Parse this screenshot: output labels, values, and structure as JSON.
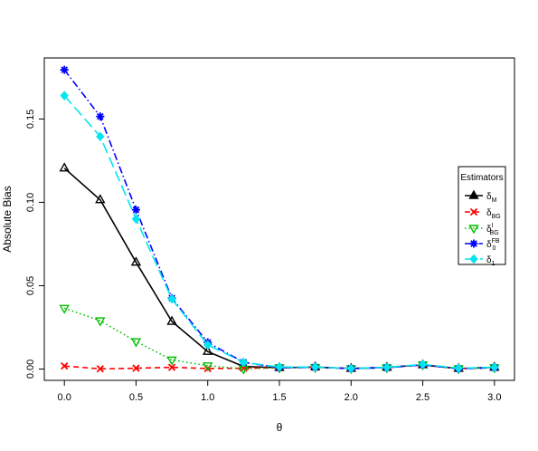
{
  "chart_data": {
    "type": "line",
    "xlabel": "θ",
    "ylabel": "Absolute Bias",
    "xlim": [
      -0.14,
      3.14
    ],
    "ylim": [
      -0.0068,
      0.1866
    ],
    "xticks": [
      "0.0",
      "0.5",
      "1.0",
      "1.5",
      "2.0",
      "2.5",
      "3.0"
    ],
    "xtick_values": [
      0,
      0.5,
      1.0,
      1.5,
      2.0,
      2.5,
      3.0
    ],
    "yticks": [
      "0.00",
      "0.05",
      "0.10",
      "0.15"
    ],
    "ytick_values": [
      0,
      0.05,
      0.1,
      0.15
    ],
    "grid": false,
    "legend": {
      "title": "Estimators",
      "placement": "right"
    },
    "x": [
      0,
      0.25,
      0.5,
      0.75,
      1.0,
      1.25,
      1.5,
      1.75,
      2.0,
      2.25,
      2.5,
      2.75,
      3.0
    ],
    "series": [
      {
        "name": "δ_M",
        "label_main": "δ",
        "label_sub": "M",
        "label_sup": "",
        "color": "#000000",
        "dash": "",
        "marker": "triangle-up-open",
        "line_marker": "triangle-up-filled",
        "values": [
          0.1205,
          0.1015,
          0.064,
          0.0285,
          0.0105,
          0.0015,
          0.0008,
          0.0012,
          0.0003,
          0.001,
          0.0025,
          0.0003,
          0.001
        ]
      },
      {
        "name": "δ_BG",
        "label_main": "δ",
        "label_sub": "BG",
        "label_sup": "",
        "color": "#ff0000",
        "dash": "6,4",
        "marker": "x",
        "line_marker": "x",
        "values": [
          0.0018,
          0.0001,
          0.0005,
          0.001,
          0.0003,
          0.0005,
          0.0008,
          0.001,
          0.0003,
          0.0008,
          0.0025,
          0.0002,
          0.0008
        ]
      },
      {
        "name": "δ_BG^I",
        "label_main": "δ",
        "label_sub": "BG",
        "label_sup": "I",
        "color": "#00c000",
        "dash": "1.5,3",
        "marker": "triangle-down-open",
        "line_marker": "triangle-down-open",
        "values": [
          0.0365,
          0.029,
          0.0165,
          0.0055,
          0.002,
          0.0001,
          0.0008,
          0.001,
          0.0003,
          0.0008,
          0.0025,
          0.0002,
          0.0008
        ]
      },
      {
        "name": "δ_0^FB",
        "label_main": "δ",
        "label_sub": "0",
        "label_sup": "FB",
        "color": "#0000ff",
        "dash": "8,3,1.5,3",
        "marker": "asterisk",
        "line_marker": "asterisk",
        "values": [
          0.1795,
          0.1515,
          0.0955,
          0.0425,
          0.016,
          0.004,
          0.0008,
          0.001,
          0.0003,
          0.0008,
          0.0025,
          0.0002,
          0.0008
        ]
      },
      {
        "name": "δ_1",
        "label_main": "δ",
        "label_sub": "1",
        "label_sup": "",
        "color": "#00e5ee",
        "dash": "12,5",
        "marker": "diamond",
        "line_marker": "diamond",
        "values": [
          0.164,
          0.1395,
          0.09,
          0.042,
          0.0145,
          0.004,
          0.0012,
          0.0012,
          0.0003,
          0.001,
          0.0028,
          0.0005,
          0.001
        ]
      }
    ]
  }
}
